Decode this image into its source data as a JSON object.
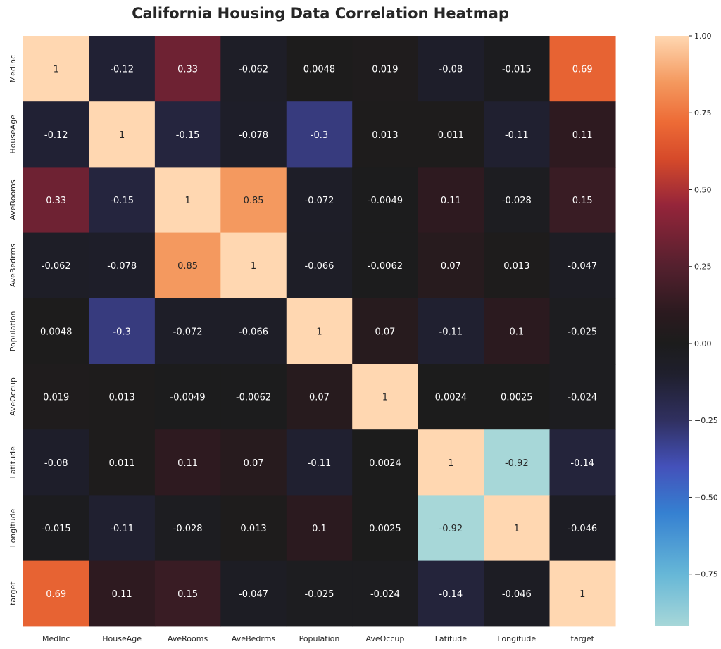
{
  "chart_data": {
    "type": "heatmap",
    "title": "California Housing Data Correlation Heatmap",
    "xlabel": "",
    "ylabel": "",
    "x_categories": [
      "MedInc",
      "HouseAge",
      "AveRooms",
      "AveBedrms",
      "Population",
      "AveOccup",
      "Latitude",
      "Longitude",
      "target"
    ],
    "y_categories": [
      "MedInc",
      "HouseAge",
      "AveRooms",
      "AveBedrms",
      "Population",
      "AveOccup",
      "Latitude",
      "Longitude",
      "target"
    ],
    "values": [
      [
        1,
        -0.12,
        0.33,
        -0.062,
        0.0048,
        0.019,
        -0.08,
        -0.015,
        0.69
      ],
      [
        -0.12,
        1,
        -0.15,
        -0.078,
        -0.3,
        0.013,
        0.011,
        -0.11,
        0.11
      ],
      [
        0.33,
        -0.15,
        1,
        0.85,
        -0.072,
        -0.0049,
        0.11,
        -0.028,
        0.15
      ],
      [
        -0.062,
        -0.078,
        0.85,
        1,
        -0.066,
        -0.0062,
        0.07,
        0.013,
        -0.047
      ],
      [
        0.0048,
        -0.3,
        -0.072,
        -0.066,
        1,
        0.07,
        -0.11,
        0.1,
        -0.025
      ],
      [
        0.019,
        0.013,
        -0.0049,
        -0.0062,
        0.07,
        1,
        0.0024,
        0.0025,
        -0.024
      ],
      [
        -0.08,
        0.011,
        0.11,
        0.07,
        -0.11,
        0.0024,
        1,
        -0.92,
        -0.14
      ],
      [
        -0.015,
        -0.11,
        -0.028,
        0.013,
        0.1,
        0.0025,
        -0.92,
        1,
        -0.046
      ],
      [
        0.69,
        0.11,
        0.15,
        -0.047,
        -0.025,
        -0.024,
        -0.14,
        -0.046,
        1
      ]
    ],
    "annotations": "cell values shown",
    "colormap": "icefire",
    "colorbar": {
      "range": [
        -0.92,
        1.0
      ],
      "ticks": [
        1.0,
        0.75,
        0.5,
        0.25,
        0.0,
        -0.25,
        -0.5,
        -0.75
      ],
      "tick_labels": [
        "1.00",
        "0.75",
        "0.50",
        "0.25",
        "0.00",
        "−0.25",
        "−0.50",
        "−0.75"
      ],
      "placement": "right",
      "stops": [
        {
          "v": -0.92,
          "color": "#a7d7d8"
        },
        {
          "v": -0.75,
          "color": "#66b7d7"
        },
        {
          "v": -0.55,
          "color": "#3580d1"
        },
        {
          "v": -0.4,
          "color": "#4451ba"
        },
        {
          "v": -0.25,
          "color": "#303060"
        },
        {
          "v": -0.1,
          "color": "#1f1f2d"
        },
        {
          "v": 0.0,
          "color": "#1c1c1c"
        },
        {
          "v": 0.1,
          "color": "#2b1a1f"
        },
        {
          "v": 0.25,
          "color": "#54202e"
        },
        {
          "v": 0.45,
          "color": "#95253a"
        },
        {
          "v": 0.6,
          "color": "#d64a2a"
        },
        {
          "v": 0.72,
          "color": "#ed6b36"
        },
        {
          "v": 0.85,
          "color": "#f4995f"
        },
        {
          "v": 1.0,
          "color": "#ffd7b1"
        }
      ]
    }
  }
}
